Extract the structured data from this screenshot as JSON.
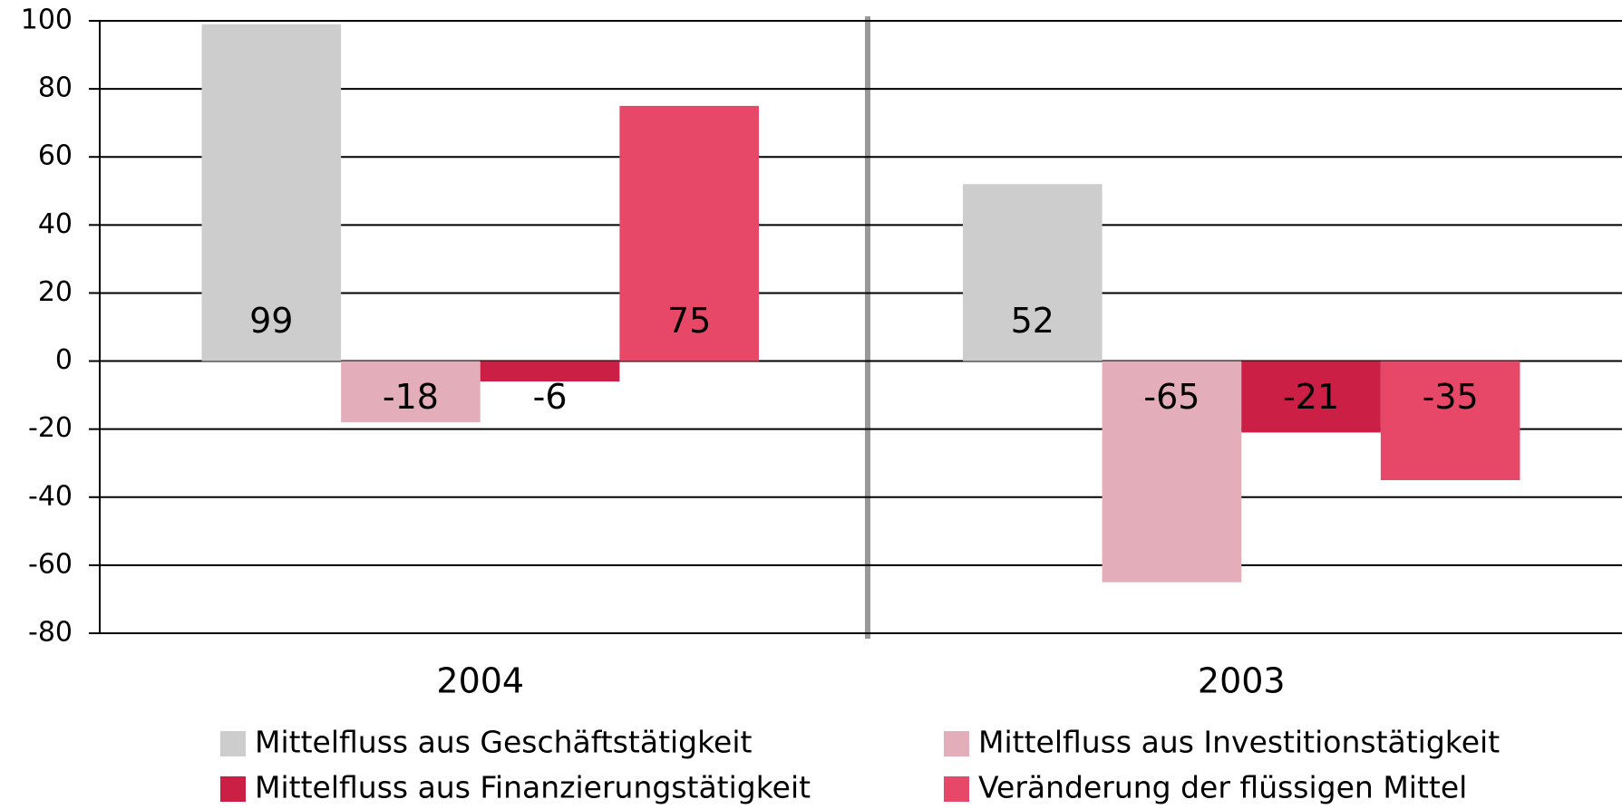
{
  "chart_data": {
    "type": "bar",
    "categories": [
      "2004",
      "2003"
    ],
    "series": [
      {
        "name": "Mittelfluss aus Geschäftstätigkeit",
        "color": "#cdcdcd",
        "values": [
          99,
          52
        ]
      },
      {
        "name": "Mittelfluss aus Investitionstätigkeit",
        "color": "#e3aeb9",
        "values": [
          -18,
          -65
        ]
      },
      {
        "name": "Mittelfluss aus Finanzierungstätigkeit",
        "color": "#cc1f45",
        "values": [
          -6,
          -21
        ]
      },
      {
        "name": "Veränderung der flüssigen Mittel",
        "color": "#e84868",
        "values": [
          75,
          -35
        ]
      }
    ],
    "ylim": [
      -80,
      100
    ],
    "yticks": [
      -80,
      -60,
      -40,
      -20,
      0,
      20,
      40,
      60,
      80,
      100
    ],
    "grid": true,
    "legend": "bottom"
  }
}
